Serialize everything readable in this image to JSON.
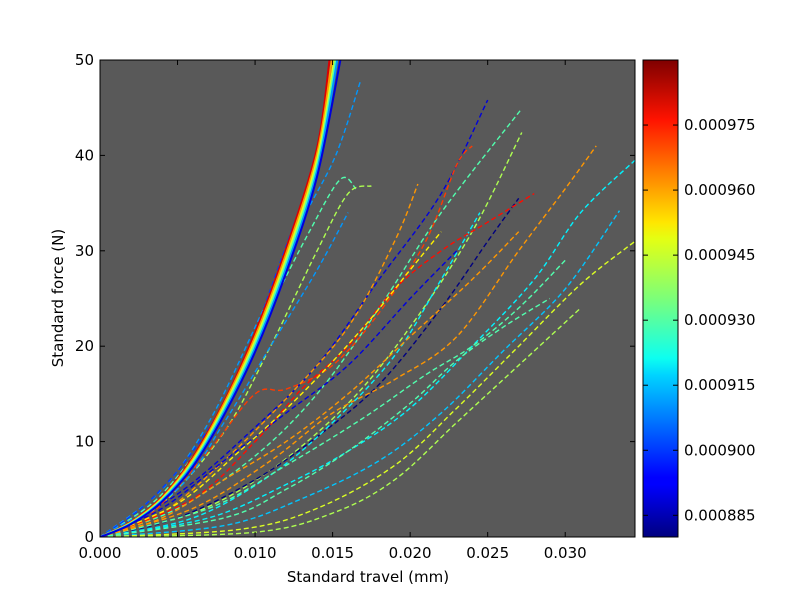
{
  "chart_data": {
    "type": "line",
    "title": "",
    "xlabel": "Standard travel (mm)",
    "ylabel": "Standard force (N)",
    "xlim": [
      0.0,
      0.0345
    ],
    "ylim": [
      0,
      50
    ],
    "xticks": [
      0.0,
      0.005,
      0.01,
      0.015,
      0.02,
      0.025,
      0.03
    ],
    "xtick_labels": [
      "0.000",
      "0.005",
      "0.010",
      "0.015",
      "0.020",
      "0.025",
      "0.030"
    ],
    "yticks": [
      0,
      10,
      20,
      30,
      40,
      50
    ],
    "ytick_labels": [
      "0",
      "10",
      "20",
      "30",
      "40",
      "50"
    ],
    "plot_background": "#595959",
    "grid": false,
    "colormap": "jet",
    "colorbar": {
      "min": 0.00088,
      "max": 0.00099,
      "ticks": [
        0.000885,
        0.0009,
        0.000915,
        0.00093,
        0.000945,
        0.00096,
        0.000975
      ],
      "tick_labels": [
        "0.000885",
        "0.000900",
        "0.000915",
        "0.000930",
        "0.000945",
        "0.000960",
        "0.000975"
      ]
    },
    "solid_series": [
      {
        "param": 0.00098,
        "points": [
          [
            0,
            0
          ],
          [
            0.002,
            1.6
          ],
          [
            0.004,
            4.2
          ],
          [
            0.006,
            8.4
          ],
          [
            0.008,
            14.2
          ],
          [
            0.01,
            21.4
          ],
          [
            0.012,
            30.2
          ],
          [
            0.014,
            40.8
          ],
          [
            0.0148,
            50
          ]
        ]
      },
      {
        "param": 0.00096,
        "points": [
          [
            0,
            0
          ],
          [
            0.002,
            1.55
          ],
          [
            0.004,
            4.1
          ],
          [
            0.006,
            8.2
          ],
          [
            0.008,
            14.0
          ],
          [
            0.01,
            21.0
          ],
          [
            0.012,
            29.7
          ],
          [
            0.014,
            40.2
          ],
          [
            0.01495,
            50
          ]
        ]
      },
      {
        "param": 0.000945,
        "points": [
          [
            0,
            0
          ],
          [
            0.002,
            1.5
          ],
          [
            0.004,
            4.0
          ],
          [
            0.006,
            8.0
          ],
          [
            0.008,
            13.7
          ],
          [
            0.01,
            20.6
          ],
          [
            0.012,
            29.2
          ],
          [
            0.014,
            39.6
          ],
          [
            0.0151,
            50
          ]
        ]
      },
      {
        "param": 0.00093,
        "points": [
          [
            0,
            0
          ],
          [
            0.002,
            1.45
          ],
          [
            0.004,
            3.9
          ],
          [
            0.006,
            7.8
          ],
          [
            0.008,
            13.4
          ],
          [
            0.01,
            20.2
          ],
          [
            0.012,
            28.7
          ],
          [
            0.014,
            39.0
          ],
          [
            0.0152,
            50
          ]
        ]
      },
      {
        "param": 0.00091,
        "points": [
          [
            0,
            0
          ],
          [
            0.002,
            1.4
          ],
          [
            0.004,
            3.8
          ],
          [
            0.006,
            7.6
          ],
          [
            0.008,
            13.1
          ],
          [
            0.01,
            19.8
          ],
          [
            0.012,
            28.2
          ],
          [
            0.014,
            38.4
          ],
          [
            0.0153,
            50
          ]
        ]
      },
      {
        "param": 0.00089,
        "points": [
          [
            0,
            0
          ],
          [
            0.002,
            1.35
          ],
          [
            0.004,
            3.7
          ],
          [
            0.006,
            7.4
          ],
          [
            0.008,
            12.8
          ],
          [
            0.01,
            19.4
          ],
          [
            0.012,
            27.7
          ],
          [
            0.014,
            37.8
          ],
          [
            0.0155,
            50
          ]
        ]
      }
    ],
    "dashed_series": [
      {
        "param": 0.00093,
        "points": [
          [
            0,
            0
          ],
          [
            0.004,
            4.5
          ],
          [
            0.008,
            13.5
          ],
          [
            0.011,
            24
          ],
          [
            0.0135,
            32
          ],
          [
            0.0155,
            37.5
          ],
          [
            0.0165,
            36.5
          ]
        ]
      },
      {
        "param": 0.00094,
        "points": [
          [
            0,
            0
          ],
          [
            0.004,
            3.5
          ],
          [
            0.008,
            11
          ],
          [
            0.011,
            20
          ],
          [
            0.014,
            30
          ],
          [
            0.016,
            36
          ],
          [
            0.0175,
            36.8
          ]
        ]
      },
      {
        "param": 0.00091,
        "points": [
          [
            0,
            0
          ],
          [
            0.004,
            5
          ],
          [
            0.007,
            12
          ],
          [
            0.01,
            22
          ],
          [
            0.013,
            33
          ],
          [
            0.0152,
            40
          ],
          [
            0.0168,
            47.8
          ]
        ]
      },
      {
        "param": 0.00089,
        "points": [
          [
            0,
            0
          ],
          [
            0.005,
            4.5
          ],
          [
            0.01,
            11.5
          ],
          [
            0.014,
            18
          ],
          [
            0.018,
            27
          ],
          [
            0.022,
            36
          ],
          [
            0.025,
            45.8
          ]
        ]
      },
      {
        "param": 0.00093,
        "points": [
          [
            0,
            0
          ],
          [
            0.005,
            3
          ],
          [
            0.01,
            8.5
          ],
          [
            0.014,
            15
          ],
          [
            0.018,
            24
          ],
          [
            0.022,
            34
          ],
          [
            0.0271,
            44.7
          ]
        ]
      },
      {
        "param": 0.00094,
        "points": [
          [
            0,
            0
          ],
          [
            0.006,
            2.5
          ],
          [
            0.011,
            7
          ],
          [
            0.016,
            14
          ],
          [
            0.02,
            22
          ],
          [
            0.024,
            32
          ],
          [
            0.0272,
            42.4
          ]
        ]
      },
      {
        "param": 0.00097,
        "points": [
          [
            0,
            0
          ],
          [
            0.003,
            2
          ],
          [
            0.007,
            9
          ],
          [
            0.01,
            15
          ],
          [
            0.012,
            15.5
          ],
          [
            0.015,
            18
          ],
          [
            0.018,
            23.5
          ],
          [
            0.021,
            31
          ],
          [
            0.023,
            39
          ],
          [
            0.024,
            41
          ]
        ]
      },
      {
        "param": 0.00096,
        "points": [
          [
            0,
            0
          ],
          [
            0.004,
            2.5
          ],
          [
            0.008,
            8
          ],
          [
            0.012,
            14.5
          ],
          [
            0.016,
            22
          ],
          [
            0.019,
            31
          ],
          [
            0.0205,
            37
          ]
        ]
      },
      {
        "param": 0.00088,
        "points": [
          [
            0,
            0
          ],
          [
            0.005,
            2
          ],
          [
            0.01,
            6
          ],
          [
            0.014,
            10.5
          ],
          [
            0.018,
            16
          ],
          [
            0.022,
            24
          ],
          [
            0.025,
            31
          ],
          [
            0.027,
            35.5
          ]
        ]
      },
      {
        "param": 0.00096,
        "points": [
          [
            0,
            0
          ],
          [
            0.006,
            3
          ],
          [
            0.011,
            8
          ],
          [
            0.015,
            13
          ],
          [
            0.019,
            16.5
          ],
          [
            0.023,
            21
          ],
          [
            0.027,
            30
          ],
          [
            0.03,
            36.5
          ],
          [
            0.032,
            41
          ]
        ]
      },
      {
        "param": 0.00092,
        "points": [
          [
            0,
            0
          ],
          [
            0.007,
            2
          ],
          [
            0.012,
            5.5
          ],
          [
            0.016,
            9
          ],
          [
            0.02,
            13.5
          ],
          [
            0.024,
            20
          ],
          [
            0.028,
            27
          ],
          [
            0.031,
            34
          ],
          [
            0.0345,
            39.5
          ]
        ]
      },
      {
        "param": 0.000915,
        "points": [
          [
            0,
            0
          ],
          [
            0.008,
            1.2
          ],
          [
            0.013,
            4
          ],
          [
            0.018,
            8
          ],
          [
            0.022,
            13
          ],
          [
            0.026,
            19.5
          ],
          [
            0.03,
            26
          ],
          [
            0.0335,
            34.2
          ]
        ]
      },
      {
        "param": 0.000945,
        "points": [
          [
            0,
            0
          ],
          [
            0.009,
            0.8
          ],
          [
            0.014,
            3
          ],
          [
            0.019,
            7.5
          ],
          [
            0.023,
            13.5
          ],
          [
            0.027,
            20
          ],
          [
            0.031,
            26.5
          ],
          [
            0.0345,
            31
          ]
        ]
      },
      {
        "param": 0.00094,
        "points": [
          [
            0,
            0
          ],
          [
            0.01,
            0.5
          ],
          [
            0.015,
            2.5
          ],
          [
            0.019,
            6
          ],
          [
            0.023,
            12
          ],
          [
            0.027,
            18
          ],
          [
            0.031,
            24
          ]
        ]
      },
      {
        "param": 0.0009,
        "points": [
          [
            0,
            0
          ],
          [
            0.003,
            3.5
          ],
          [
            0.006,
            9
          ],
          [
            0.009,
            17
          ],
          [
            0.011,
            26
          ],
          [
            0.013,
            35
          ]
        ]
      },
      {
        "param": 0.00092,
        "points": [
          [
            0,
            0
          ],
          [
            0.006,
            2
          ],
          [
            0.011,
            6.5
          ],
          [
            0.015,
            12
          ],
          [
            0.019,
            19
          ],
          [
            0.022,
            27
          ],
          [
            0.0245,
            34
          ]
        ]
      },
      {
        "param": 0.000975,
        "points": [
          [
            0,
            0
          ],
          [
            0.006,
            4
          ],
          [
            0.01,
            10
          ],
          [
            0.013,
            15.5
          ],
          [
            0.016,
            20
          ],
          [
            0.019,
            26
          ],
          [
            0.022,
            30
          ],
          [
            0.025,
            33
          ],
          [
            0.028,
            36
          ]
        ]
      },
      {
        "param": 0.00093,
        "points": [
          [
            0,
            0
          ],
          [
            0.007,
            3
          ],
          [
            0.012,
            7.5
          ],
          [
            0.017,
            12.5
          ],
          [
            0.021,
            17
          ],
          [
            0.024,
            20
          ],
          [
            0.027,
            24
          ],
          [
            0.03,
            29
          ]
        ]
      },
      {
        "param": 0.00089,
        "points": [
          [
            0,
            0
          ],
          [
            0.004,
            3
          ],
          [
            0.008,
            8
          ],
          [
            0.012,
            13
          ],
          [
            0.016,
            18
          ],
          [
            0.02,
            25
          ],
          [
            0.023,
            30
          ]
        ]
      },
      {
        "param": 0.00095,
        "points": [
          [
            0,
            0
          ],
          [
            0.005,
            3.5
          ],
          [
            0.009,
            9
          ],
          [
            0.013,
            15
          ],
          [
            0.017,
            22
          ],
          [
            0.02,
            28
          ],
          [
            0.022,
            32
          ]
        ]
      },
      {
        "param": 0.00096,
        "points": [
          [
            0,
            0
          ],
          [
            0.004,
            2
          ],
          [
            0.008,
            6
          ],
          [
            0.012,
            10
          ],
          [
            0.016,
            15
          ],
          [
            0.02,
            21
          ],
          [
            0.024,
            27
          ],
          [
            0.027,
            32
          ]
        ]
      },
      {
        "param": 0.00091,
        "points": [
          [
            0,
            0
          ],
          [
            0.005,
            5
          ],
          [
            0.008,
            12
          ],
          [
            0.011,
            20
          ],
          [
            0.014,
            28
          ],
          [
            0.016,
            34
          ]
        ]
      },
      {
        "param": 0.00093,
        "points": [
          [
            0,
            0
          ],
          [
            0.008,
            2
          ],
          [
            0.012,
            5
          ],
          [
            0.016,
            9
          ],
          [
            0.02,
            14
          ],
          [
            0.023,
            18.5
          ],
          [
            0.026,
            22
          ],
          [
            0.029,
            25
          ]
        ]
      }
    ]
  }
}
